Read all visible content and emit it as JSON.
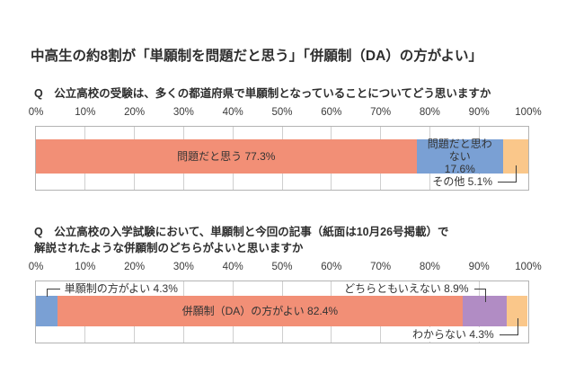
{
  "page": {
    "title": "中高生の約8割が「単願制を問題だと思う」「併願制（DA）の方がよい」",
    "background_color": "#ffffff",
    "text_color": "#333333"
  },
  "style": {
    "grid_color": "#cfcfcf",
    "box_border_color": "#b3b3b3",
    "callout_line_color": "#3c3c3c"
  },
  "chart_data": [
    {
      "type": "bar",
      "stacked": true,
      "orientation": "horizontal",
      "question": "Q　公立高校の受験は、多くの都道府県で単願制となっていることについてどう思いますか",
      "xlim": [
        0,
        100
      ],
      "grid": true,
      "tick_labels": [
        "0%",
        "10%",
        "20%",
        "30%",
        "40%",
        "50%",
        "60%",
        "70%",
        "80%",
        "90%",
        "100%"
      ],
      "segments": [
        {
          "label": "問題だと思う",
          "value": 77.3,
          "display": "問題だと思う 77.3%",
          "color": "#F28F76",
          "annotation": "inside"
        },
        {
          "label": "問題だと思わない",
          "value": 17.6,
          "display": "問題だと思わない\n17.6%",
          "color": "#7AA0D4",
          "annotation": "inside"
        },
        {
          "label": "その他",
          "value": 5.1,
          "display": "その他 5.1%",
          "color": "#FAC78A",
          "annotation": "callout-bottom-right"
        }
      ]
    },
    {
      "type": "bar",
      "stacked": true,
      "orientation": "horizontal",
      "question": "Q　公立高校の入学試験において、単願制と今回の記事（紙面は10月26号掲載）で\n解説されたような併願制のどちらがよいと思いますか",
      "xlim": [
        0,
        100
      ],
      "grid": true,
      "tick_labels": [
        "0%",
        "10%",
        "20%",
        "30%",
        "40%",
        "50%",
        "60%",
        "70%",
        "80%",
        "90%",
        "100%"
      ],
      "segments": [
        {
          "label": "単願制の方がよい",
          "value": 4.3,
          "display": "単願制の方がよい 4.3%",
          "color": "#7AA0D4",
          "annotation": "callout-top-left"
        },
        {
          "label": "併願制（DA）の方がよい",
          "value": 82.4,
          "display": "併願制（DA）の方がよい 82.4%",
          "color": "#F28F76",
          "annotation": "inside"
        },
        {
          "label": "どちらともいえない",
          "value": 8.9,
          "display": "どちらともいえない 8.9%",
          "color": "#B18CC4",
          "annotation": "callout-top-right"
        },
        {
          "label": "わからない",
          "value": 4.3,
          "display": "わからない 4.3%",
          "color": "#FAC78A",
          "annotation": "callout-bottom-right"
        }
      ]
    }
  ]
}
